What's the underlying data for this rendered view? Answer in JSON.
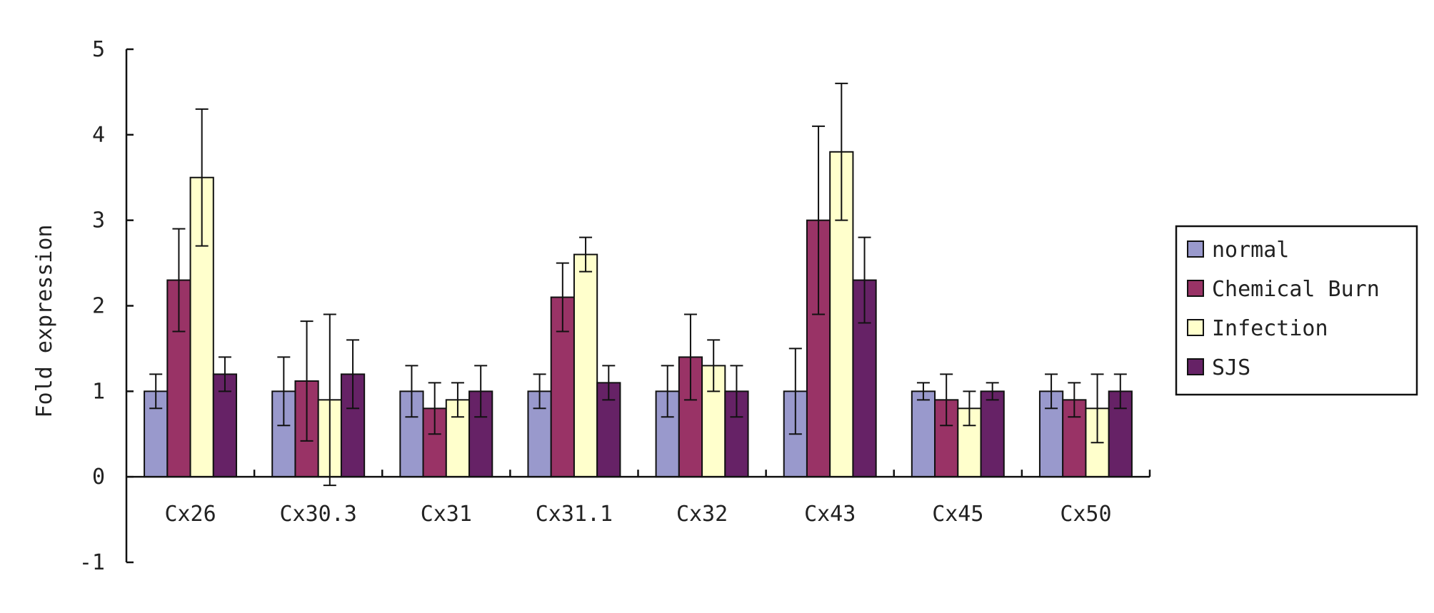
{
  "chart_data": {
    "type": "bar",
    "title": "",
    "xlabel": "",
    "ylabel": "Fold expression",
    "ylim": [
      -1,
      5
    ],
    "yticks": [
      "-1",
      "0",
      "1",
      "2",
      "3",
      "4",
      "5"
    ],
    "grid": false,
    "legend_position": "right",
    "categories": [
      "Cx26",
      "Cx30.3",
      "Cx31",
      "Cx31.1",
      "Cx32",
      "Cx43",
      "Cx45",
      "Cx50"
    ],
    "series": [
      {
        "name": "normal",
        "color": "#9999cc",
        "values": [
          1,
          1,
          1,
          1,
          1,
          1,
          1,
          1
        ],
        "error": [
          0.2,
          0.4,
          0.3,
          0.2,
          0.3,
          0.5,
          0.1,
          0.2
        ]
      },
      {
        "name": "Chemical Burn",
        "color": "#993366",
        "values": [
          2.3,
          1.12,
          0.8,
          2.1,
          1.4,
          3.0,
          0.9,
          0.9
        ],
        "error": [
          0.6,
          0.7,
          0.3,
          0.4,
          0.5,
          1.1,
          0.3,
          0.2
        ]
      },
      {
        "name": "Infection",
        "color": "#ffffcc",
        "values": [
          3.5,
          0.9,
          0.9,
          2.6,
          1.3,
          3.8,
          0.8,
          0.8
        ],
        "error": [
          0.8,
          1.0,
          0.2,
          0.2,
          0.3,
          0.8,
          0.2,
          0.4
        ]
      },
      {
        "name": "SJS",
        "color": "#662266",
        "values": [
          1.2,
          1.2,
          1.0,
          1.1,
          1.0,
          2.3,
          1.0,
          1.0
        ],
        "error": [
          0.2,
          0.4,
          0.3,
          0.2,
          0.3,
          0.5,
          0.1,
          0.2
        ]
      }
    ]
  }
}
